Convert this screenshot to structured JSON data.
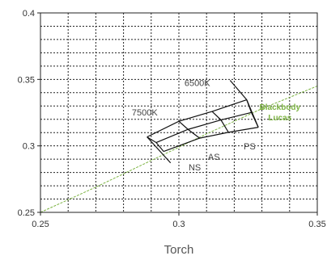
{
  "chart_data": {
    "type": "line",
    "title": "",
    "xlabel": "Torch",
    "ylabel": "",
    "xlim": [
      0.25,
      0.35
    ],
    "ylim": [
      0.25,
      0.4
    ],
    "grid": true,
    "xticks": [
      {
        "value": 0.25,
        "label": "0.25"
      },
      {
        "value": 0.3,
        "label": "0.3"
      },
      {
        "value": 0.35,
        "label": "0.35"
      }
    ],
    "yticks": [
      {
        "value": 0.25,
        "label": "0.25"
      },
      {
        "value": 0.3,
        "label": "0.3"
      },
      {
        "value": 0.35,
        "label": "0.35"
      },
      {
        "value": 0.4,
        "label": "0.4"
      }
    ],
    "series": [
      {
        "name": "Blackbody Lucas",
        "label_lines": [
          "Blackbody",
          "Lucas"
        ],
        "color": "#7cb342",
        "style": "dashed",
        "x": [
          0.25,
          0.27,
          0.29,
          0.31,
          0.33,
          0.35
        ],
        "y": [
          0.25,
          0.269,
          0.289,
          0.309,
          0.328,
          0.345
        ]
      }
    ],
    "quadrangle": {
      "color": "#111111",
      "rows": [
        [
          [
            0.2885,
            0.3067
          ],
          [
            0.3,
            0.3185
          ],
          [
            0.312,
            0.3259
          ],
          [
            0.3245,
            0.3347
          ]
        ],
        [
          [
            0.2918,
            0.3025
          ],
          [
            0.3033,
            0.3124
          ],
          [
            0.3152,
            0.3195
          ],
          [
            0.3262,
            0.3251
          ]
        ],
        [
          [
            0.2945,
            0.2958
          ],
          [
            0.3075,
            0.3058
          ],
          [
            0.3179,
            0.3102
          ],
          [
            0.3287,
            0.314
          ]
        ]
      ],
      "guides": [
        [
          [
            0.2885,
            0.3067
          ],
          [
            0.297,
            0.2872
          ]
        ],
        [
          [
            0.3185,
            0.3493
          ],
          [
            0.3245,
            0.3347
          ]
        ],
        [
          [
            0.3287,
            0.314
          ],
          [
            0.3245,
            0.3347
          ]
        ]
      ]
    },
    "annotations": [
      {
        "text": "6500K",
        "x": 0.302,
        "y": 0.345
      },
      {
        "text": "7500K",
        "x": 0.283,
        "y": 0.323
      },
      {
        "text": "AS",
        "x": 0.3105,
        "y": 0.2895
      },
      {
        "text": "NS",
        "x": 0.3035,
        "y": 0.2815
      },
      {
        "text": "PS",
        "x": 0.3234,
        "y": 0.2975
      }
    ]
  }
}
